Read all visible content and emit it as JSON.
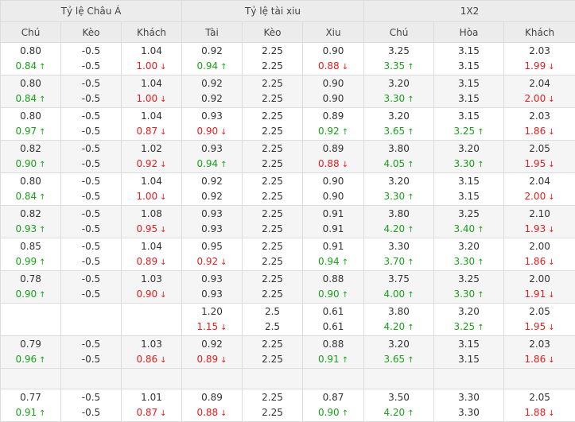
{
  "headers": {
    "groups": [
      "Tỷ lệ Châu Á",
      "Tỷ lệ tài xiu",
      "1X2"
    ],
    "columns": [
      "Chú",
      "Kèo",
      "Khách",
      "Tài",
      "Kèo",
      "Xiu",
      "Chú",
      "Hòa",
      "Khách"
    ]
  },
  "arrows": {
    "up": "↑",
    "down": "↓"
  },
  "colors": {
    "up": "#1aa01a",
    "down": "#e02020"
  },
  "rows": [
    {
      "cells": [
        [
          {
            "v": "0.80"
          },
          {
            "v": "0.84",
            "d": "up"
          }
        ],
        [
          {
            "v": "-0.5"
          },
          {
            "v": "-0.5"
          }
        ],
        [
          {
            "v": "1.04"
          },
          {
            "v": "1.00",
            "d": "down"
          }
        ],
        [
          {
            "v": "0.92"
          },
          {
            "v": "0.94",
            "d": "up"
          }
        ],
        [
          {
            "v": "2.25"
          },
          {
            "v": "2.25"
          }
        ],
        [
          {
            "v": "0.90"
          },
          {
            "v": "0.88",
            "d": "down"
          }
        ],
        [
          {
            "v": "3.25"
          },
          {
            "v": "3.35",
            "d": "up"
          }
        ],
        [
          {
            "v": "3.15"
          },
          {
            "v": "3.15"
          }
        ],
        [
          {
            "v": "2.03"
          },
          {
            "v": "1.99",
            "d": "down"
          }
        ]
      ]
    },
    {
      "cells": [
        [
          {
            "v": "0.80"
          },
          {
            "v": "0.84",
            "d": "up"
          }
        ],
        [
          {
            "v": "-0.5"
          },
          {
            "v": "-0.5"
          }
        ],
        [
          {
            "v": "1.04"
          },
          {
            "v": "1.00",
            "d": "down"
          }
        ],
        [
          {
            "v": "0.92"
          },
          {
            "v": "0.92"
          }
        ],
        [
          {
            "v": "2.25"
          },
          {
            "v": "2.25"
          }
        ],
        [
          {
            "v": "0.90"
          },
          {
            "v": "0.90"
          }
        ],
        [
          {
            "v": "3.20"
          },
          {
            "v": "3.30",
            "d": "up"
          }
        ],
        [
          {
            "v": "3.15"
          },
          {
            "v": "3.15"
          }
        ],
        [
          {
            "v": "2.04"
          },
          {
            "v": "2.00",
            "d": "down"
          }
        ]
      ]
    },
    {
      "cells": [
        [
          {
            "v": "0.80"
          },
          {
            "v": "0.97",
            "d": "up"
          }
        ],
        [
          {
            "v": "-0.5"
          },
          {
            "v": "-0.5"
          }
        ],
        [
          {
            "v": "1.04"
          },
          {
            "v": "0.87",
            "d": "down"
          }
        ],
        [
          {
            "v": "0.93"
          },
          {
            "v": "0.90",
            "d": "down"
          }
        ],
        [
          {
            "v": "2.25"
          },
          {
            "v": "2.25"
          }
        ],
        [
          {
            "v": "0.89"
          },
          {
            "v": "0.92",
            "d": "up"
          }
        ],
        [
          {
            "v": "3.20"
          },
          {
            "v": "3.65",
            "d": "up"
          }
        ],
        [
          {
            "v": "3.15"
          },
          {
            "v": "3.25",
            "d": "up"
          }
        ],
        [
          {
            "v": "2.03"
          },
          {
            "v": "1.86",
            "d": "down"
          }
        ]
      ]
    },
    {
      "cells": [
        [
          {
            "v": "0.82"
          },
          {
            "v": "0.90",
            "d": "up"
          }
        ],
        [
          {
            "v": "-0.5"
          },
          {
            "v": "-0.5"
          }
        ],
        [
          {
            "v": "1.02"
          },
          {
            "v": "0.92",
            "d": "down"
          }
        ],
        [
          {
            "v": "0.93"
          },
          {
            "v": "0.94",
            "d": "up"
          }
        ],
        [
          {
            "v": "2.25"
          },
          {
            "v": "2.25"
          }
        ],
        [
          {
            "v": "0.89"
          },
          {
            "v": "0.88",
            "d": "down"
          }
        ],
        [
          {
            "v": "3.80"
          },
          {
            "v": "4.05",
            "d": "up"
          }
        ],
        [
          {
            "v": "3.20"
          },
          {
            "v": "3.30",
            "d": "up"
          }
        ],
        [
          {
            "v": "2.05"
          },
          {
            "v": "1.95",
            "d": "down"
          }
        ]
      ]
    },
    {
      "cells": [
        [
          {
            "v": "0.80"
          },
          {
            "v": "0.84",
            "d": "up"
          }
        ],
        [
          {
            "v": "-0.5"
          },
          {
            "v": "-0.5"
          }
        ],
        [
          {
            "v": "1.04"
          },
          {
            "v": "1.00",
            "d": "down"
          }
        ],
        [
          {
            "v": "0.92"
          },
          {
            "v": "0.92"
          }
        ],
        [
          {
            "v": "2.25"
          },
          {
            "v": "2.25"
          }
        ],
        [
          {
            "v": "0.90"
          },
          {
            "v": "0.90"
          }
        ],
        [
          {
            "v": "3.20"
          },
          {
            "v": "3.30",
            "d": "up"
          }
        ],
        [
          {
            "v": "3.15"
          },
          {
            "v": "3.15"
          }
        ],
        [
          {
            "v": "2.04"
          },
          {
            "v": "2.00",
            "d": "down"
          }
        ]
      ]
    },
    {
      "cells": [
        [
          {
            "v": "0.82"
          },
          {
            "v": "0.93",
            "d": "up"
          }
        ],
        [
          {
            "v": "-0.5"
          },
          {
            "v": "-0.5"
          }
        ],
        [
          {
            "v": "1.08"
          },
          {
            "v": "0.95",
            "d": "down"
          }
        ],
        [
          {
            "v": "0.93"
          },
          {
            "v": "0.93"
          }
        ],
        [
          {
            "v": "2.25"
          },
          {
            "v": "2.25"
          }
        ],
        [
          {
            "v": "0.91"
          },
          {
            "v": "0.91"
          }
        ],
        [
          {
            "v": "3.80"
          },
          {
            "v": "4.20",
            "d": "up"
          }
        ],
        [
          {
            "v": "3.25"
          },
          {
            "v": "3.40",
            "d": "up"
          }
        ],
        [
          {
            "v": "2.10"
          },
          {
            "v": "1.93",
            "d": "down"
          }
        ]
      ]
    },
    {
      "cells": [
        [
          {
            "v": "0.85"
          },
          {
            "v": "0.99",
            "d": "up"
          }
        ],
        [
          {
            "v": "-0.5"
          },
          {
            "v": "-0.5"
          }
        ],
        [
          {
            "v": "1.04"
          },
          {
            "v": "0.89",
            "d": "down"
          }
        ],
        [
          {
            "v": "0.95"
          },
          {
            "v": "0.92",
            "d": "down"
          }
        ],
        [
          {
            "v": "2.25"
          },
          {
            "v": "2.25"
          }
        ],
        [
          {
            "v": "0.91"
          },
          {
            "v": "0.94",
            "d": "up"
          }
        ],
        [
          {
            "v": "3.30"
          },
          {
            "v": "3.70",
            "d": "up"
          }
        ],
        [
          {
            "v": "3.20"
          },
          {
            "v": "3.30",
            "d": "up"
          }
        ],
        [
          {
            "v": "2.00"
          },
          {
            "v": "1.86",
            "d": "down"
          }
        ]
      ]
    },
    {
      "cells": [
        [
          {
            "v": "0.78"
          },
          {
            "v": "0.90",
            "d": "up"
          }
        ],
        [
          {
            "v": "-0.5"
          },
          {
            "v": "-0.5"
          }
        ],
        [
          {
            "v": "1.03"
          },
          {
            "v": "0.90",
            "d": "down"
          }
        ],
        [
          {
            "v": "0.93"
          },
          {
            "v": "0.93"
          }
        ],
        [
          {
            "v": "2.25"
          },
          {
            "v": "2.25"
          }
        ],
        [
          {
            "v": "0.88"
          },
          {
            "v": "0.90",
            "d": "up"
          }
        ],
        [
          {
            "v": "3.75"
          },
          {
            "v": "4.00",
            "d": "up"
          }
        ],
        [
          {
            "v": "3.25"
          },
          {
            "v": "3.30",
            "d": "up"
          }
        ],
        [
          {
            "v": "2.00"
          },
          {
            "v": "1.91",
            "d": "down"
          }
        ]
      ]
    },
    {
      "cells": [
        [],
        [],
        [],
        [
          {
            "v": "1.20"
          },
          {
            "v": "1.15",
            "d": "down"
          }
        ],
        [
          {
            "v": "2.5"
          },
          {
            "v": "2.5"
          }
        ],
        [
          {
            "v": "0.61"
          },
          {
            "v": "0.61"
          }
        ],
        [
          {
            "v": "3.80"
          },
          {
            "v": "4.20",
            "d": "up"
          }
        ],
        [
          {
            "v": "3.20"
          },
          {
            "v": "3.25",
            "d": "up"
          }
        ],
        [
          {
            "v": "2.05"
          },
          {
            "v": "1.95",
            "d": "down"
          }
        ]
      ]
    },
    {
      "cells": [
        [
          {
            "v": "0.79"
          },
          {
            "v": "0.96",
            "d": "up"
          }
        ],
        [
          {
            "v": "-0.5"
          },
          {
            "v": "-0.5"
          }
        ],
        [
          {
            "v": "1.03"
          },
          {
            "v": "0.86",
            "d": "down"
          }
        ],
        [
          {
            "v": "0.92"
          },
          {
            "v": "0.89",
            "d": "down"
          }
        ],
        [
          {
            "v": "2.25"
          },
          {
            "v": "2.25"
          }
        ],
        [
          {
            "v": "0.88"
          },
          {
            "v": "0.91",
            "d": "up"
          }
        ],
        [
          {
            "v": "3.20"
          },
          {
            "v": "3.65",
            "d": "up"
          }
        ],
        [
          {
            "v": "3.15"
          },
          {
            "v": "3.15"
          }
        ],
        [
          {
            "v": "2.03"
          },
          {
            "v": "1.86",
            "d": "down"
          }
        ]
      ]
    },
    {
      "empty": true
    },
    {
      "cells": [
        [
          {
            "v": "0.77"
          },
          {
            "v": "0.91",
            "d": "up"
          }
        ],
        [
          {
            "v": "-0.5"
          },
          {
            "v": "-0.5"
          }
        ],
        [
          {
            "v": "1.01"
          },
          {
            "v": "0.87",
            "d": "down"
          }
        ],
        [
          {
            "v": "0.89"
          },
          {
            "v": "0.88",
            "d": "down"
          }
        ],
        [
          {
            "v": "2.25"
          },
          {
            "v": "2.25"
          }
        ],
        [
          {
            "v": "0.87"
          },
          {
            "v": "0.90",
            "d": "up"
          }
        ],
        [
          {
            "v": "3.50"
          },
          {
            "v": "4.20",
            "d": "up"
          }
        ],
        [
          {
            "v": "3.30"
          },
          {
            "v": "3.30"
          }
        ],
        [
          {
            "v": "2.05"
          },
          {
            "v": "1.88",
            "d": "down"
          }
        ]
      ]
    }
  ]
}
